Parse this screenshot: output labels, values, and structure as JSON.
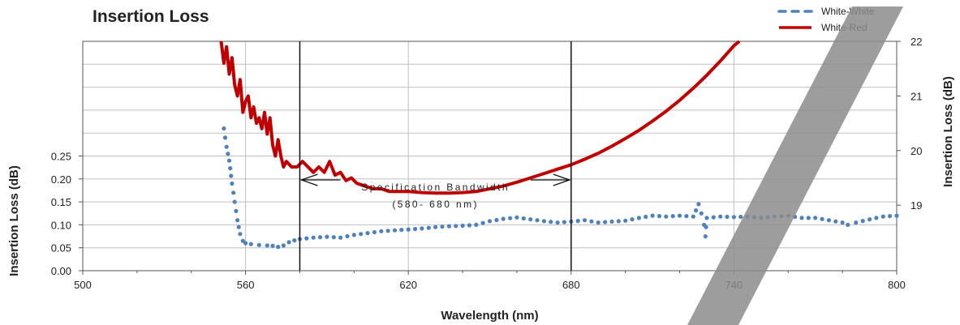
{
  "chart_data": {
    "type": "line",
    "title": "Insertion Loss",
    "xlabel": "Wavelength (nm)",
    "ylabel_left": "Insertion Loss (dB)",
    "ylabel_right": "Insertion Loss (dB)",
    "xlim": [
      500,
      800
    ],
    "x_ticks": [
      "500",
      "560",
      "620",
      "680",
      "740",
      "800"
    ],
    "ylim_left": [
      0,
      0.5
    ],
    "y_ticks_left": [
      "0.00",
      "0.05",
      "0.10",
      "0.15",
      "0.20",
      "0.25"
    ],
    "ylim_right": [
      17.8,
      22
    ],
    "y_ticks_right": [
      "19",
      "20",
      "21",
      "22"
    ],
    "grid": true,
    "legend_position": "top-right",
    "series": [
      {
        "name": "White-White",
        "axis": "left",
        "style": "dotted",
        "color": "#4F81BD",
        "points": [
          [
            552,
            0.31
          ],
          [
            553,
            0.27
          ],
          [
            554,
            0.24
          ],
          [
            555,
            0.19
          ],
          [
            556,
            0.15
          ],
          [
            557,
            0.11
          ],
          [
            558,
            0.08
          ],
          [
            559,
            0.065
          ],
          [
            560,
            0.06
          ],
          [
            562,
            0.058
          ],
          [
            565,
            0.056
          ],
          [
            568,
            0.055
          ],
          [
            570,
            0.054
          ],
          [
            572,
            0.052
          ],
          [
            574,
            0.055
          ],
          [
            576,
            0.062
          ],
          [
            578,
            0.066
          ],
          [
            580,
            0.069
          ],
          [
            585,
            0.072
          ],
          [
            590,
            0.074
          ],
          [
            595,
            0.072
          ],
          [
            600,
            0.078
          ],
          [
            605,
            0.082
          ],
          [
            610,
            0.086
          ],
          [
            615,
            0.088
          ],
          [
            620,
            0.09
          ],
          [
            625,
            0.092
          ],
          [
            630,
            0.095
          ],
          [
            635,
            0.097
          ],
          [
            640,
            0.098
          ],
          [
            645,
            0.1
          ],
          [
            650,
            0.108
          ],
          [
            655,
            0.113
          ],
          [
            660,
            0.116
          ],
          [
            665,
            0.112
          ],
          [
            670,
            0.108
          ],
          [
            675,
            0.105
          ],
          [
            680,
            0.107
          ],
          [
            685,
            0.11
          ],
          [
            690,
            0.105
          ],
          [
            695,
            0.107
          ],
          [
            700,
            0.109
          ],
          [
            705,
            0.115
          ],
          [
            710,
            0.12
          ],
          [
            715,
            0.118
          ],
          [
            720,
            0.12
          ],
          [
            725,
            0.118
          ],
          [
            727,
            0.145
          ],
          [
            728,
            0.125
          ],
          [
            729,
            0.1
          ],
          [
            729.5,
            0.075
          ],
          [
            730,
            0.115
          ],
          [
            735,
            0.118
          ],
          [
            740,
            0.117
          ],
          [
            745,
            0.118
          ],
          [
            750,
            0.115
          ],
          [
            755,
            0.118
          ],
          [
            760,
            0.12
          ],
          [
            765,
            0.115
          ],
          [
            770,
            0.115
          ],
          [
            775,
            0.11
          ],
          [
            780,
            0.105
          ],
          [
            782,
            0.1
          ],
          [
            785,
            0.105
          ],
          [
            790,
            0.112
          ],
          [
            795,
            0.118
          ],
          [
            800,
            0.12
          ]
        ]
      },
      {
        "name": "White-Red",
        "axis": "right",
        "style": "solid",
        "color": "#C00000",
        "points": [
          [
            551,
            22.0
          ],
          [
            552,
            21.6
          ],
          [
            553,
            21.9
          ],
          [
            554,
            21.4
          ],
          [
            555,
            21.7
          ],
          [
            556,
            21.2
          ],
          [
            557,
            21.0
          ],
          [
            558,
            21.3
          ],
          [
            559,
            20.7
          ],
          [
            560,
            20.9
          ],
          [
            561,
            21.0
          ],
          [
            562,
            20.6
          ],
          [
            563,
            20.8
          ],
          [
            564,
            20.5
          ],
          [
            565,
            20.6
          ],
          [
            566,
            20.4
          ],
          [
            567,
            20.7
          ],
          [
            568,
            20.3
          ],
          [
            569,
            20.6
          ],
          [
            570,
            20.1
          ],
          [
            571,
            19.9
          ],
          [
            572,
            20.2
          ],
          [
            573,
            19.9
          ],
          [
            574,
            19.7
          ],
          [
            575,
            19.8
          ],
          [
            577,
            19.7
          ],
          [
            579,
            19.7
          ],
          [
            581,
            19.8
          ],
          [
            583,
            19.7
          ],
          [
            585,
            19.6
          ],
          [
            587,
            19.7
          ],
          [
            589,
            19.6
          ],
          [
            591,
            19.8
          ],
          [
            593,
            19.55
          ],
          [
            595,
            19.6
          ],
          [
            597,
            19.45
          ],
          [
            599,
            19.5
          ],
          [
            601,
            19.4
          ],
          [
            604,
            19.35
          ],
          [
            607,
            19.3
          ],
          [
            610,
            19.3
          ],
          [
            613,
            19.25
          ],
          [
            616,
            19.25
          ],
          [
            620,
            19.25
          ],
          [
            625,
            19.23
          ],
          [
            630,
            19.22
          ],
          [
            635,
            19.22
          ],
          [
            640,
            19.23
          ],
          [
            645,
            19.25
          ],
          [
            650,
            19.3
          ],
          [
            655,
            19.35
          ],
          [
            660,
            19.42
          ],
          [
            665,
            19.5
          ],
          [
            670,
            19.58
          ],
          [
            675,
            19.66
          ],
          [
            680,
            19.74
          ],
          [
            685,
            19.84
          ],
          [
            690,
            19.95
          ],
          [
            695,
            20.08
          ],
          [
            700,
            20.22
          ],
          [
            705,
            20.37
          ],
          [
            710,
            20.54
          ],
          [
            715,
            20.72
          ],
          [
            720,
            20.92
          ],
          [
            725,
            21.14
          ],
          [
            730,
            21.38
          ],
          [
            735,
            21.64
          ],
          [
            740,
            21.92
          ],
          [
            742,
            22.05
          ]
        ]
      }
    ],
    "annotations": [
      {
        "text_line1": "Specification Bandwidth",
        "text_line2": "(580- 680 nm)",
        "x_start": 580,
        "x_end": 680
      }
    ]
  }
}
